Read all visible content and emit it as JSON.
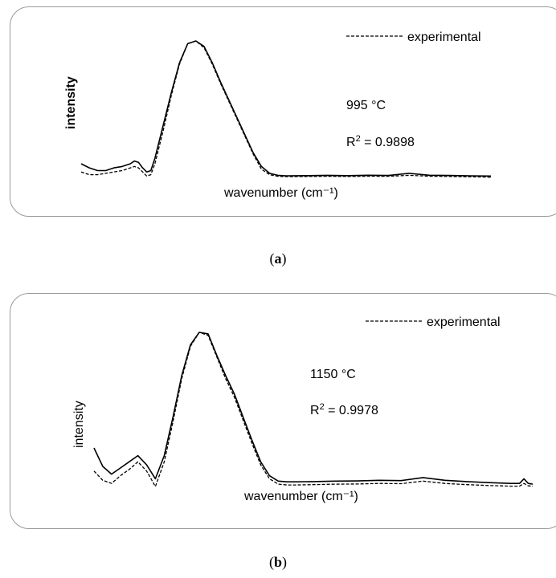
{
  "chart_data": [
    {
      "type": "line",
      "panel_label": "a",
      "legend": "experimental",
      "temperature": "995 °C",
      "r2": "0.9898",
      "ylabel": "intensity",
      "ylabel_bold": true,
      "xlabel": "wavenumber (cm⁻¹)",
      "x": [
        0,
        2,
        4,
        6,
        8,
        10,
        12,
        13,
        14,
        15,
        16,
        17,
        18,
        20,
        22,
        24,
        26,
        28,
        30,
        32,
        34,
        36,
        38,
        40,
        42,
        44,
        46,
        48,
        50,
        55,
        60,
        65,
        70,
        75,
        80,
        85,
        90,
        95,
        100
      ],
      "series": [
        {
          "style": "solid",
          "values": [
            10,
            7,
            5,
            5,
            7,
            8,
            10,
            12,
            11,
            7,
            4,
            5,
            14,
            38,
            62,
            84,
            98,
            100,
            96,
            84,
            70,
            57,
            44,
            31,
            18,
            8,
            3,
            1.5,
            1.2,
            1.3,
            1.5,
            1.3,
            1.6,
            1.4,
            3.0,
            1.6,
            1.4,
            1.2,
            1.0
          ]
        },
        {
          "style": "dashed",
          "values": [
            4,
            2,
            2,
            3,
            4,
            5,
            7,
            8,
            7,
            4,
            1,
            2,
            10,
            34,
            60,
            83,
            98,
            100,
            95,
            83,
            69,
            56,
            43,
            30,
            17,
            6,
            2,
            0.8,
            0.6,
            0.7,
            0.8,
            0.7,
            0.9,
            0.8,
            1.5,
            0.9,
            0.7,
            0.5,
            0.2
          ]
        }
      ]
    },
    {
      "type": "line",
      "panel_label": "b",
      "legend": "experimental",
      "temperature": "1150 °C",
      "r2": "0.9978",
      "ylabel": "intensity",
      "ylabel_bold": false,
      "xlabel": "wavenumber (cm⁻¹)",
      "x": [
        0,
        2,
        4,
        6,
        8,
        10,
        12,
        14,
        16,
        18,
        20,
        22,
        24,
        26,
        28,
        30,
        32,
        34,
        36,
        38,
        40,
        42,
        44,
        46,
        50,
        55,
        60,
        65,
        70,
        75,
        80,
        85,
        90,
        95,
        97,
        98,
        99,
        100
      ],
      "series": [
        {
          "style": "solid",
          "values": [
            25,
            13,
            8,
            12,
            16,
            20,
            14,
            5,
            20,
            45,
            72,
            92,
            100,
            99,
            85,
            72,
            60,
            45,
            30,
            16,
            7,
            3.5,
            3.0,
            3.0,
            3.2,
            3.5,
            3.6,
            4.0,
            3.8,
            5.8,
            4.0,
            3.2,
            2.5,
            2.0,
            2.0,
            5.0,
            2.0,
            1.5
          ]
        },
        {
          "style": "dashed",
          "values": [
            10,
            4,
            2,
            7,
            11,
            16,
            10,
            0,
            16,
            42,
            70,
            91,
            100,
            98,
            84,
            70,
            58,
            43,
            28,
            14,
            5,
            1.5,
            1.0,
            1.0,
            1.2,
            1.5,
            1.6,
            2.0,
            1.8,
            3.5,
            2.0,
            1.2,
            0.6,
            0.2,
            0.2,
            2.0,
            0.4,
            0.2
          ]
        }
      ]
    }
  ]
}
